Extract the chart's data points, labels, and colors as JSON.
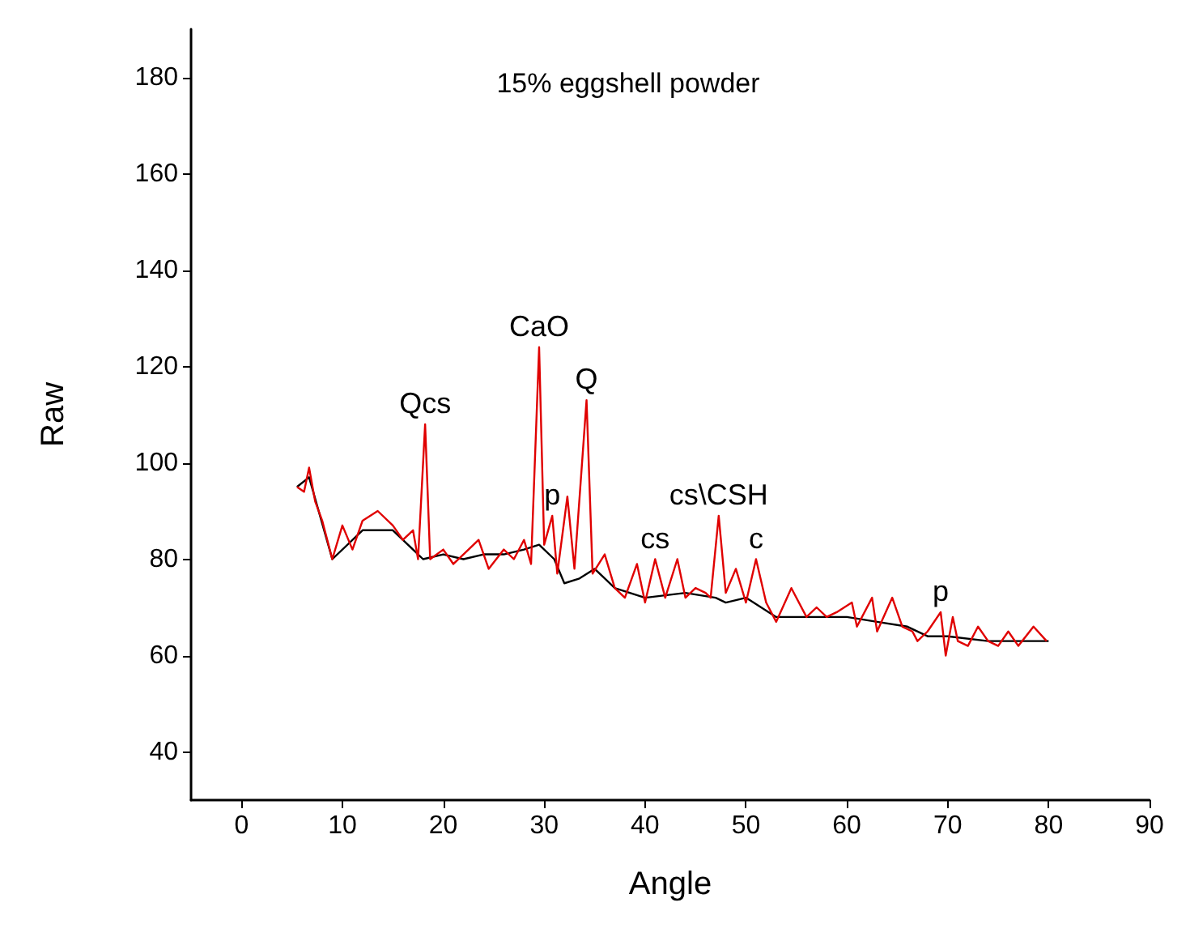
{
  "chart_data": {
    "type": "line",
    "title": "15% eggshell powder",
    "xlabel": "Angle",
    "ylabel": "Raw",
    "xlim": [
      -5,
      90
    ],
    "xticks": [
      0,
      10,
      20,
      30,
      40,
      50,
      60,
      70,
      80,
      90
    ],
    "ylim": [
      30,
      190
    ],
    "yticks": [
      40,
      60,
      80,
      100,
      120,
      140,
      160,
      180
    ],
    "grid": false,
    "marker": "none",
    "line_style": "solid",
    "series": [
      {
        "color": "#000000",
        "x": [
          5.5,
          6.7,
          9,
          12,
          15,
          17,
          18,
          20,
          22,
          24,
          26,
          28,
          29.5,
          31,
          32,
          33.5,
          35,
          37,
          40,
          44,
          47,
          48,
          50,
          53,
          56,
          60,
          63,
          66,
          68,
          70,
          74,
          78,
          80
        ],
        "values": [
          95,
          97,
          80,
          86,
          86,
          82,
          80,
          81,
          80,
          81,
          81,
          82,
          83,
          80,
          75,
          76,
          78,
          74,
          72,
          73,
          72,
          71,
          72,
          68,
          68,
          68,
          67,
          66,
          64,
          64,
          63,
          63,
          63
        ]
      },
      {
        "color": "#e00000",
        "x": [
          5.5,
          6.2,
          6.7,
          7.3,
          8,
          9,
          10,
          11,
          12,
          13.5,
          15,
          16,
          17,
          17.5,
          18.2,
          18.7,
          20,
          21,
          22,
          23.5,
          24.5,
          26,
          27,
          28,
          28.7,
          29.5,
          30,
          30.8,
          31.3,
          32.3,
          33,
          34.2,
          34.8,
          36,
          37,
          38,
          39.2,
          40,
          41,
          42,
          43.2,
          44,
          45,
          46,
          46.5,
          47.3,
          48,
          49,
          50,
          51,
          52,
          53,
          54.5,
          56,
          57,
          58,
          59,
          60.5,
          61,
          62.5,
          63,
          64.5,
          65.5,
          66.5,
          67,
          68,
          69.3,
          69.8,
          70.5,
          71,
          72,
          73,
          74,
          75,
          76,
          77,
          78.5,
          79.8
        ],
        "values": [
          95,
          94,
          99,
          92,
          88,
          80,
          87,
          82,
          88,
          90,
          87,
          84,
          86,
          80,
          108,
          80,
          82,
          79,
          81,
          84,
          78,
          82,
          80,
          84,
          79,
          124,
          83,
          89,
          77,
          93,
          78,
          113,
          77,
          81,
          74,
          72,
          79,
          71,
          80,
          72,
          80,
          72,
          74,
          73,
          72,
          89,
          73,
          78,
          71,
          80,
          71,
          67,
          74,
          68,
          70,
          68,
          69,
          71,
          66,
          72,
          65,
          72,
          66,
          65,
          63,
          65,
          69,
          60,
          68,
          63,
          62,
          66,
          63,
          62,
          65,
          62,
          66,
          63
        ]
      }
    ],
    "annotations": [
      {
        "text": "Qcs",
        "x": 18.2,
        "y": 108
      },
      {
        "text": "CaO",
        "x": 29.5,
        "y": 124
      },
      {
        "text": "p",
        "x": 30.8,
        "y": 89
      },
      {
        "text": "Q",
        "x": 34.2,
        "y": 113
      },
      {
        "text": "cs",
        "x": 41,
        "y": 80
      },
      {
        "text": "cs\\CSH",
        "x": 47.3,
        "y": 89
      },
      {
        "text": "c",
        "x": 51,
        "y": 80
      },
      {
        "text": "p",
        "x": 69.3,
        "y": 69
      }
    ]
  }
}
